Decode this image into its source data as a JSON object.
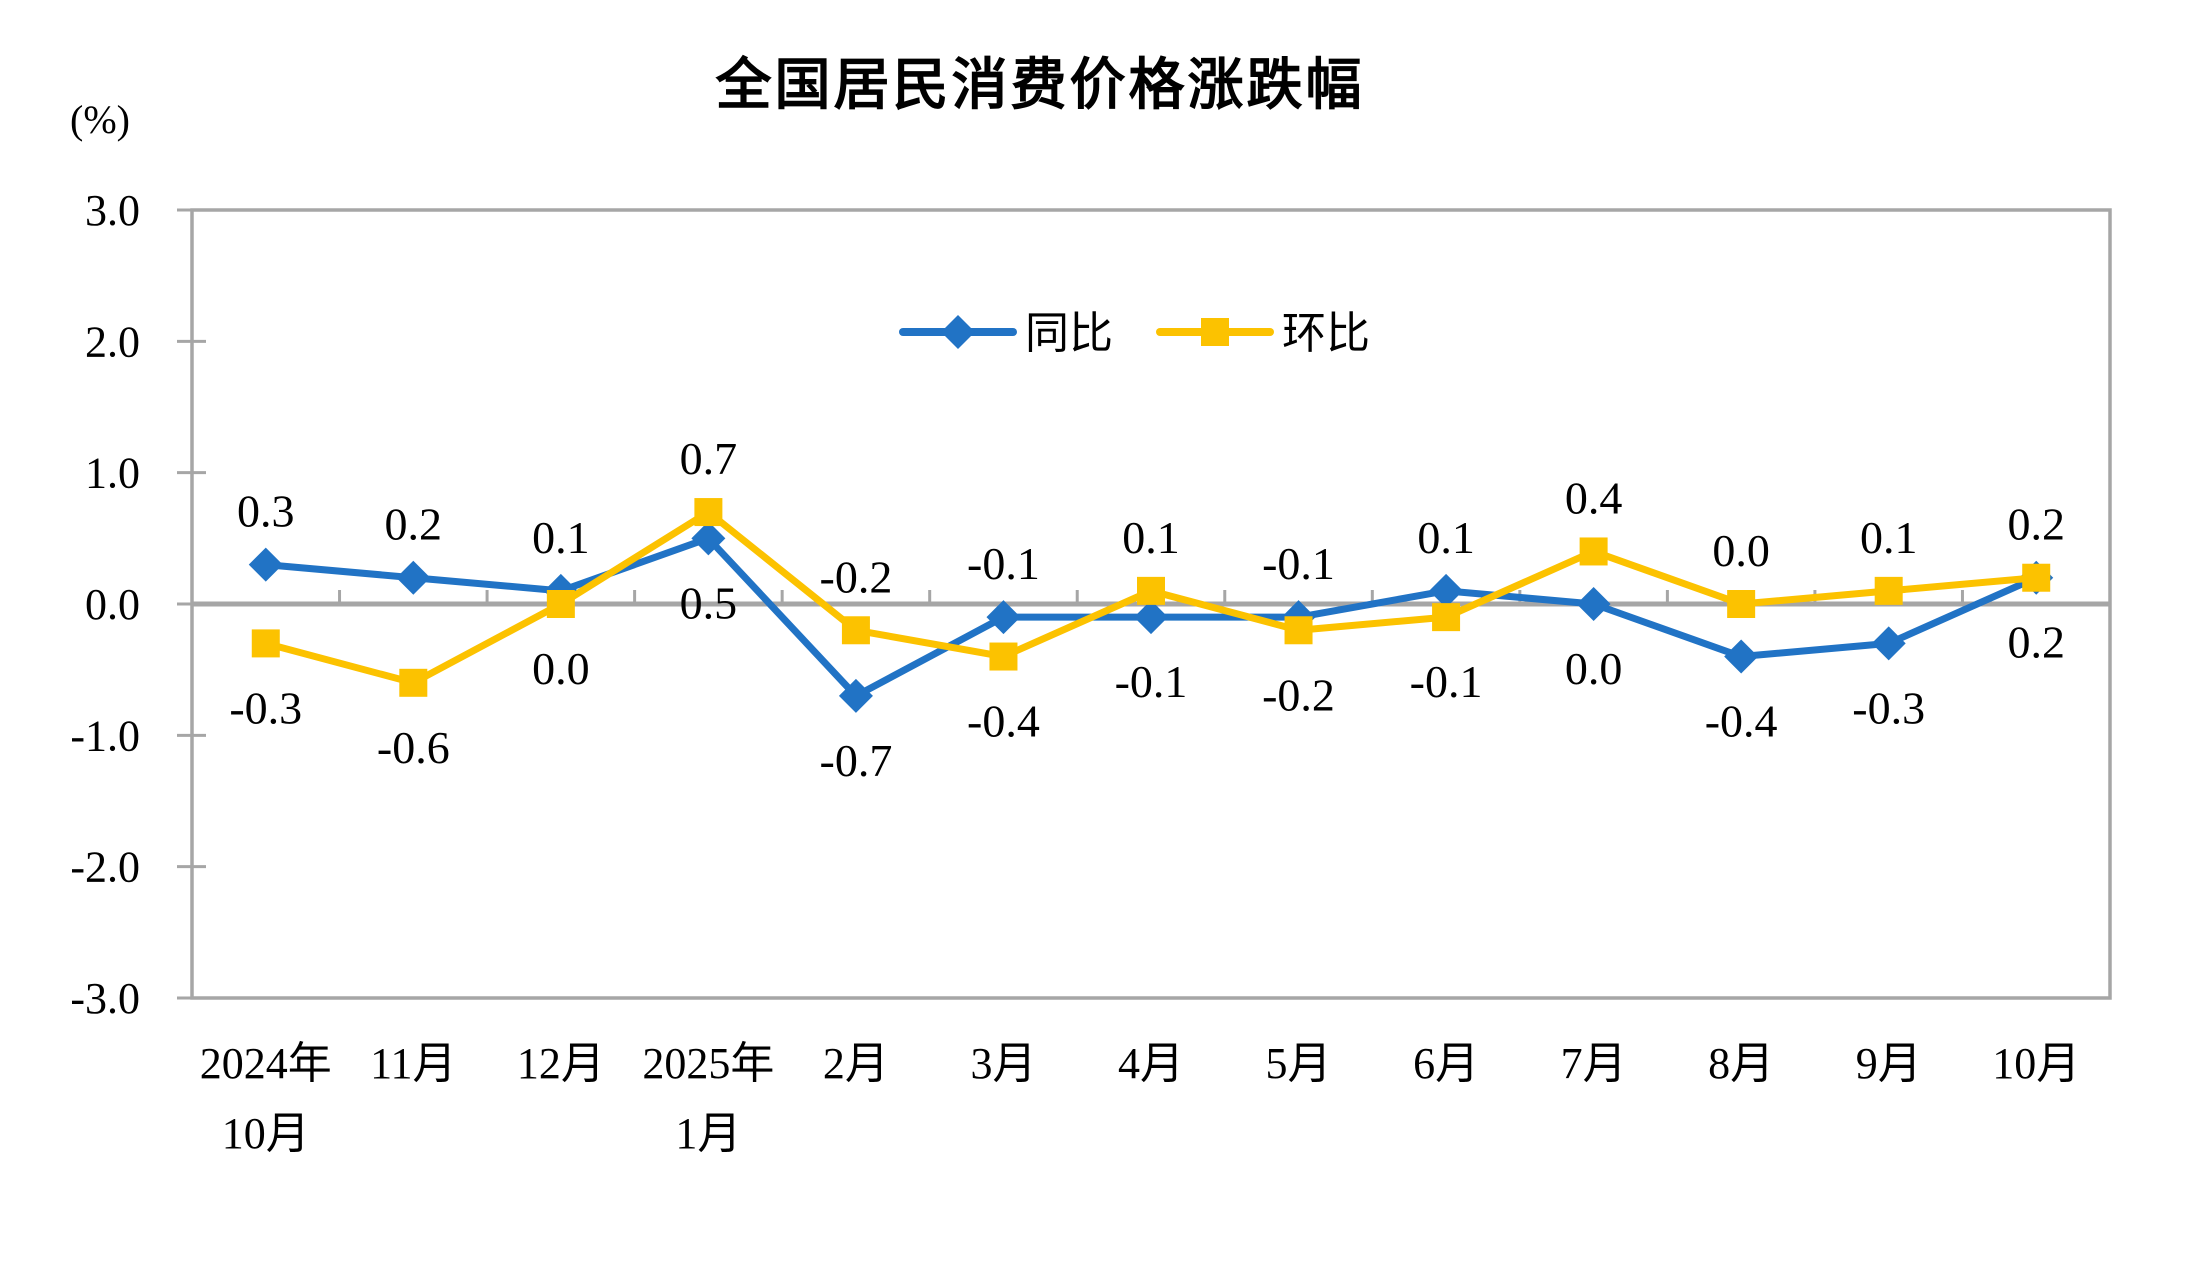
{
  "title": "全国居民消费价格涨跌幅",
  "unit_label": "(%)",
  "colors": {
    "axis": "#A6A6A6",
    "label_text": "#000000",
    "yoy_blue": "#2173C5",
    "mom_gold": "#FCC200"
  },
  "chart_data": {
    "type": "line",
    "title": "全国居民消费价格涨跌幅",
    "ylabel": "(%)",
    "xlabel": "",
    "ylim": [
      -3.0,
      3.0
    ],
    "ytick_step": 1.0,
    "ytick_labels": [
      "3.0",
      "2.0",
      "1.0",
      "0.0",
      "-1.0",
      "-2.0",
      "-3.0"
    ],
    "grid": false,
    "zero_line": true,
    "legend_position": "top-center-inside",
    "categories": [
      "2024年\n10月",
      "11月",
      "12月",
      "2025年\n1月",
      "2月",
      "3月",
      "4月",
      "5月",
      "6月",
      "7月",
      "8月",
      "9月",
      "10月"
    ],
    "series": [
      {
        "id": "yoy",
        "name": "同比",
        "color": "#2173C5",
        "marker": "diamond",
        "values": [
          0.3,
          0.2,
          0.1,
          0.5,
          -0.7,
          -0.1,
          -0.1,
          -0.1,
          0.1,
          0.0,
          -0.4,
          -0.3,
          0.2
        ],
        "label_side": [
          "above",
          "above",
          "above",
          "below",
          "below",
          "above",
          "below",
          "above",
          "above",
          "below",
          "below",
          "below",
          "below"
        ]
      },
      {
        "id": "mom",
        "name": "环比",
        "color": "#FCC200",
        "marker": "square",
        "values": [
          -0.3,
          -0.6,
          0.0,
          0.7,
          -0.2,
          -0.4,
          0.1,
          -0.2,
          -0.1,
          0.4,
          0.0,
          0.1,
          0.2
        ],
        "label_side": [
          "below",
          "below",
          "below",
          "above",
          "above",
          "below",
          "above",
          "below",
          "below",
          "above",
          "above",
          "above",
          "above"
        ]
      }
    ]
  }
}
